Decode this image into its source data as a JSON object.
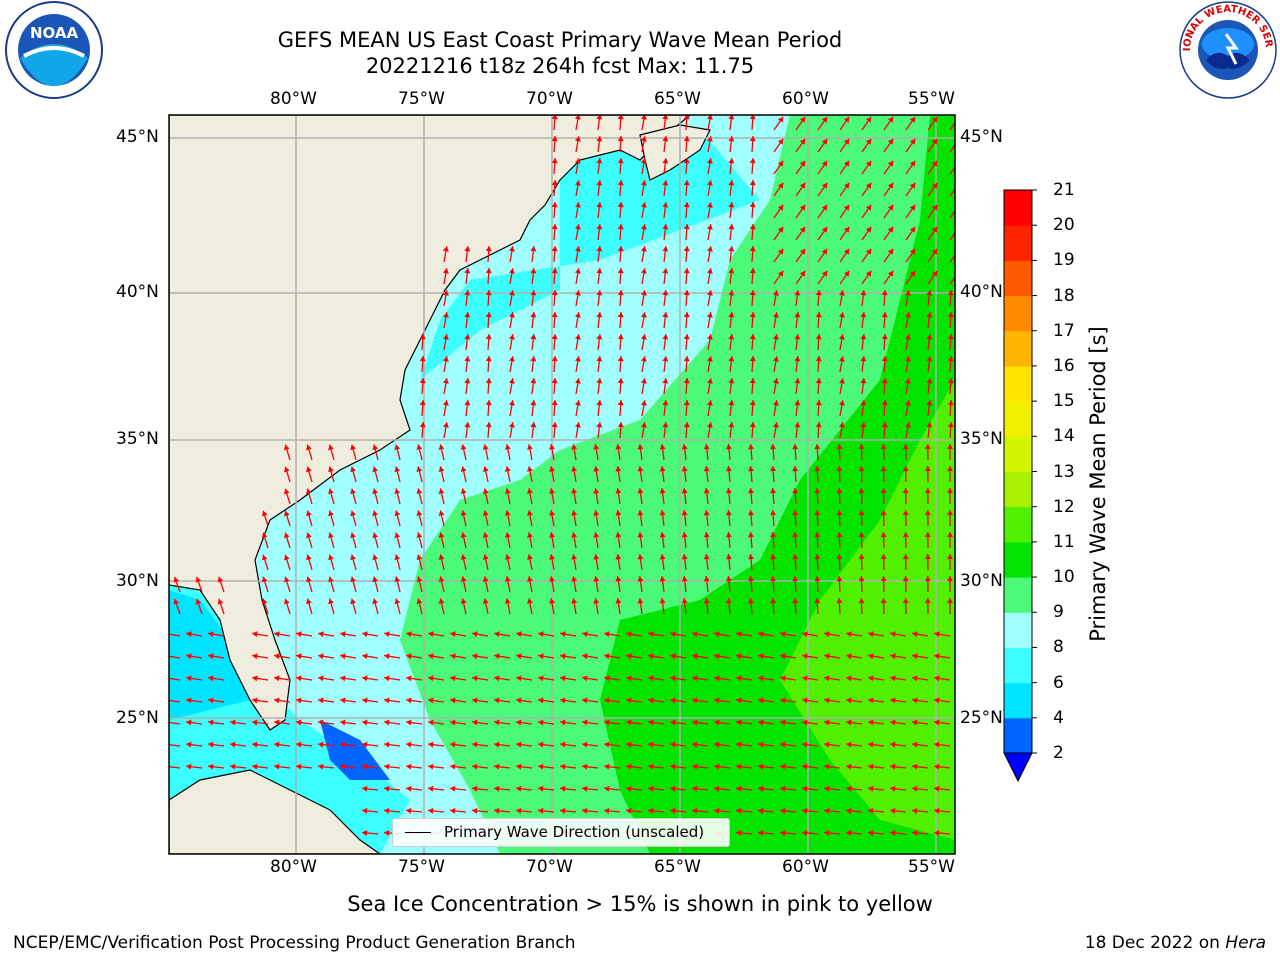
{
  "title": {
    "line1": "GEFS MEAN US East Coast Primary Wave Mean Period",
    "line2": "20221216 t18z 264h fcst   Max: 11.75"
  },
  "logos": {
    "left": "noaa-logo",
    "left_text": "NOAA",
    "right": "nws-logo",
    "right_text": "NATIONAL WEATHER SERVICE"
  },
  "map": {
    "lon_labels": [
      "80°W",
      "75°W",
      "70°W",
      "65°W",
      "60°W",
      "55°W"
    ],
    "lat_labels": [
      "45°N",
      "40°N",
      "35°N",
      "30°N",
      "25°N"
    ],
    "extent": {
      "lon_min": -85,
      "lon_max": -54.3,
      "lat_min": 20.5,
      "lat_max": 46.2
    },
    "gridlines": true,
    "colors": {
      "land": "#efedde",
      "coast": "#000000",
      "grid": "#b0b0b0",
      "arrow": "#ff0000"
    }
  },
  "colorbar": {
    "label": "Primary Wave Mean Period [s]",
    "ticks": [
      "2",
      "4",
      "6",
      "8",
      "9",
      "10",
      "11",
      "12",
      "13",
      "14",
      "15",
      "16",
      "17",
      "18",
      "19",
      "20",
      "21"
    ],
    "colors": [
      "#0064ff",
      "#00e5ff",
      "#3cffff",
      "#a0ffff",
      "#4cfa7a",
      "#00e400",
      "#50f000",
      "#a8f000",
      "#d4f500",
      "#f0f000",
      "#ffe400",
      "#ffb400",
      "#ff8a00",
      "#ff5a00",
      "#ff2400",
      "#ff0000"
    ],
    "extend_color": "#0000ff"
  },
  "legend": {
    "label": "Primary Wave Direction (unscaled)"
  },
  "note": "Sea Ice Concentration > 15% is shown in pink to yellow",
  "credit": {
    "left": "NCEP/EMC/Verification Post Processing Product Generation Branch",
    "right_date": "18 Dec 2022 on ",
    "right_host": "Hera"
  }
}
